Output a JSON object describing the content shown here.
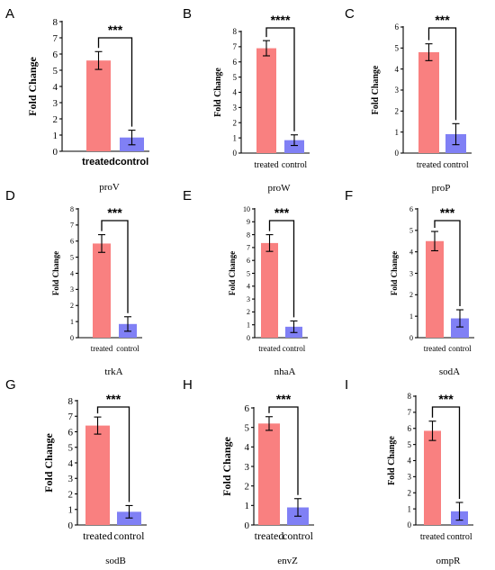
{
  "figure": {
    "background": "#ffffff"
  },
  "chart_data": [
    {
      "panel": "A",
      "gene": "proV",
      "type": "bar",
      "categories": [
        "treated",
        "control"
      ],
      "values": [
        5.6,
        0.85
      ],
      "errors": [
        0.55,
        0.45
      ],
      "colors": [
        "#f98080",
        "#8080f5"
      ],
      "ylabel": "Fold Change",
      "ylim": [
        0,
        8
      ],
      "yticks": [
        0,
        1,
        2,
        3,
        4,
        5,
        6,
        7,
        8
      ],
      "significance": "***"
    },
    {
      "panel": "B",
      "gene": "proW",
      "type": "bar",
      "categories": [
        "treated",
        "control"
      ],
      "values": [
        6.9,
        0.85
      ],
      "errors": [
        0.5,
        0.35
      ],
      "colors": [
        "#f98080",
        "#8080f5"
      ],
      "ylabel": "Fold Change",
      "ylim": [
        0,
        8
      ],
      "yticks": [
        0,
        1,
        2,
        3,
        4,
        5,
        6,
        7,
        8
      ],
      "significance": "****"
    },
    {
      "panel": "C",
      "gene": "proP",
      "type": "bar",
      "categories": [
        "treated",
        "control"
      ],
      "values": [
        4.8,
        0.9
      ],
      "errors": [
        0.4,
        0.5
      ],
      "colors": [
        "#f98080",
        "#8080f5"
      ],
      "ylabel": "Fold Change",
      "ylim": [
        0,
        6
      ],
      "yticks": [
        0,
        1,
        2,
        3,
        4,
        5,
        6
      ],
      "significance": "***"
    },
    {
      "panel": "D",
      "gene": "trkA",
      "type": "bar",
      "categories": [
        "treated",
        "control"
      ],
      "values": [
        5.85,
        0.85
      ],
      "errors": [
        0.55,
        0.45
      ],
      "colors": [
        "#f98080",
        "#8080f5"
      ],
      "ylabel": "Fold Change",
      "ylim": [
        0,
        8
      ],
      "yticks": [
        0,
        1,
        2,
        3,
        4,
        5,
        6,
        7,
        8
      ],
      "significance": "***"
    },
    {
      "panel": "E",
      "gene": "nhaA",
      "type": "bar",
      "categories": [
        "treated",
        "control"
      ],
      "values": [
        7.35,
        0.85
      ],
      "errors": [
        0.65,
        0.45
      ],
      "colors": [
        "#f98080",
        "#8080f5"
      ],
      "ylabel": "Fold Change",
      "ylim": [
        0,
        10
      ],
      "yticks": [
        0,
        1,
        2,
        3,
        4,
        5,
        6,
        7,
        8,
        9,
        10
      ],
      "significance": "***"
    },
    {
      "panel": "F",
      "gene": "sodA",
      "type": "bar",
      "categories": [
        "treated",
        "control"
      ],
      "values": [
        4.5,
        0.9
      ],
      "errors": [
        0.45,
        0.4
      ],
      "colors": [
        "#f98080",
        "#8080f5"
      ],
      "ylabel": "Fold Change",
      "ylim": [
        0,
        6
      ],
      "yticks": [
        0,
        1,
        2,
        3,
        4,
        5,
        6
      ],
      "significance": "***"
    },
    {
      "panel": "G",
      "gene": "sodB",
      "type": "bar",
      "categories": [
        "treated",
        "control"
      ],
      "values": [
        6.4,
        0.85
      ],
      "errors": [
        0.55,
        0.4
      ],
      "colors": [
        "#f98080",
        "#8080f5"
      ],
      "ylabel": "Fold Change",
      "ylim": [
        0,
        8
      ],
      "yticks": [
        0,
        1,
        2,
        3,
        4,
        5,
        6,
        7,
        8
      ],
      "significance": "***"
    },
    {
      "panel": "H",
      "gene": "envZ",
      "type": "bar",
      "categories": [
        "treated",
        "control"
      ],
      "values": [
        5.2,
        0.9
      ],
      "errors": [
        0.35,
        0.45
      ],
      "colors": [
        "#f98080",
        "#8080f5"
      ],
      "ylabel": "Fold Change",
      "ylim": [
        0,
        6
      ],
      "yticks": [
        0,
        1,
        2,
        3,
        4,
        5,
        6
      ],
      "significance": "***"
    },
    {
      "panel": "I",
      "gene": "ompR",
      "type": "bar",
      "categories": [
        "treated",
        "control"
      ],
      "values": [
        5.85,
        0.85
      ],
      "errors": [
        0.6,
        0.55
      ],
      "colors": [
        "#f98080",
        "#8080f5"
      ],
      "ylabel": "Fold Change",
      "ylim": [
        0,
        8
      ],
      "yticks": [
        0,
        1,
        2,
        3,
        4,
        5,
        6,
        7,
        8
      ],
      "significance": "***"
    }
  ]
}
